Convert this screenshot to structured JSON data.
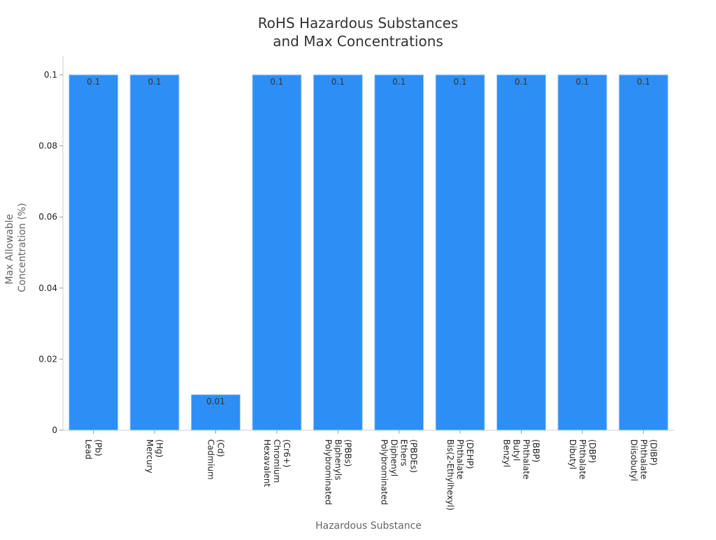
{
  "chart_data": {
    "type": "bar",
    "title_lines": [
      "RoHS Hazardous Substances",
      "and Max Concentrations"
    ],
    "xlabel": "Hazardous Substance",
    "ylabel_lines": [
      "Max Allowable",
      "Concentration (%)"
    ],
    "ylim": [
      0,
      0.1
    ],
    "yticks": [
      "0",
      "0.02",
      "0.04",
      "0.06",
      "0.08",
      "0.1"
    ],
    "grid": false,
    "bar_color": "#2d8ff5",
    "categories": [
      [
        "Lead",
        "(Pb)"
      ],
      [
        "Mercury",
        "(Hg)"
      ],
      [
        "Cadmium",
        "(Cd)"
      ],
      [
        "Hexavalent",
        "Chromium",
        "(Cr6+)"
      ],
      [
        "Polybrominated",
        "Biphenyls",
        "(PBBs)"
      ],
      [
        "Polybrominated",
        "Diphenyl",
        "Ethers",
        "(PBDEs)"
      ],
      [
        "Bis(2-Ethylhexyl)",
        "Phthalate",
        "(DEHP)"
      ],
      [
        "Benzyl",
        "Butyl",
        "Phthalate",
        "(BBP)"
      ],
      [
        "Dibutyl",
        "Phthalate",
        "(DBP)"
      ],
      [
        "Diisobutyl",
        "Phthalate",
        "(DIBP)"
      ]
    ],
    "values": [
      0.1,
      0.1,
      0.01,
      0.1,
      0.1,
      0.1,
      0.1,
      0.1,
      0.1,
      0.1
    ],
    "data_labels": [
      "0.1",
      "0.1",
      "0.01",
      "0.1",
      "0.1",
      "0.1",
      "0.1",
      "0.1",
      "0.1",
      "0.1"
    ]
  }
}
